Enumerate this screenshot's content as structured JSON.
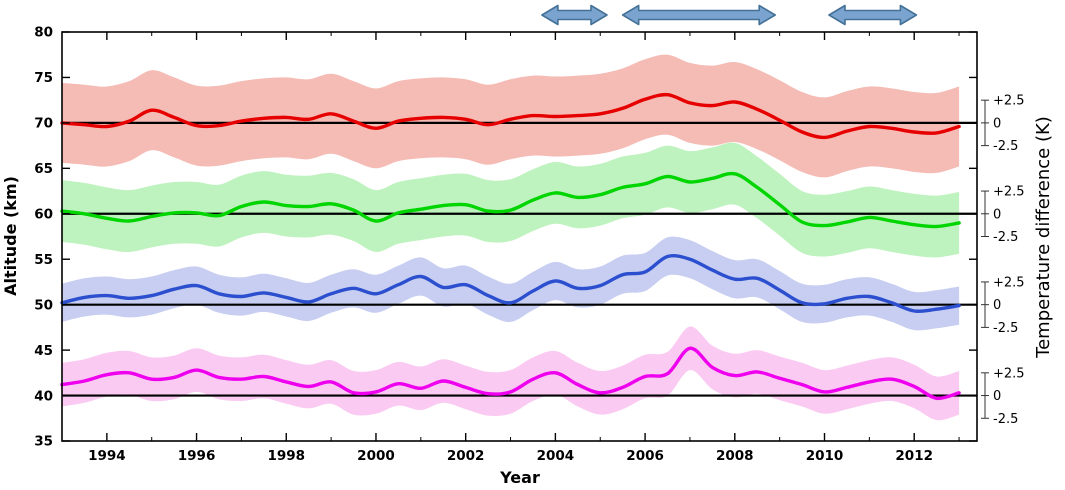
{
  "axes": {
    "x": {
      "label": "Year",
      "ticks": [
        1994,
        1996,
        1998,
        2000,
        2002,
        2004,
        2006,
        2008,
        2010,
        2012
      ],
      "minor_ticks": [
        1993,
        1995,
        1997,
        1999,
        2001,
        2003,
        2005,
        2007,
        2009,
        2011,
        2013
      ],
      "range": [
        1993,
        2013.4
      ]
    },
    "y_left": {
      "label": "Altitude (km)",
      "ticks": [
        35,
        40,
        45,
        50,
        55,
        60,
        65,
        70,
        75,
        80
      ],
      "range": [
        35,
        80
      ]
    },
    "y_right": {
      "label": "Temperature difference (K)",
      "tick_labels": [
        "+2.5",
        "0",
        "-2.5"
      ],
      "tick_offsets_K": [
        2.5,
        0,
        -2.5
      ],
      "baselines_km": [
        70,
        60,
        50,
        40
      ]
    }
  },
  "arrows": [
    {
      "name": "period-arrow-1",
      "year_start": 2003.7,
      "year_end": 2005.15
    },
    {
      "name": "period-arrow-2",
      "year_start": 2005.5,
      "year_end": 2008.9
    },
    {
      "name": "period-arrow-3",
      "year_start": 2010.1,
      "year_end": 2012.05
    }
  ],
  "arrow_style": {
    "fill": "#7ba3cf",
    "stroke": "#447197"
  },
  "chart_data": {
    "type": "line",
    "title": "",
    "xlabel": "Year",
    "ylabel_left": "Altitude (km)",
    "ylabel_right": "Temperature difference (K)",
    "x_range": [
      1993,
      2013.4
    ],
    "y_range_km": [
      35,
      80
    ],
    "note": "Four temperature-difference (K) time series plotted around altitude baselines; 1 K = 1 km on the altitude axis; shaded envelopes show uncertainty.",
    "x": [
      1993,
      1993.5,
      1994,
      1994.5,
      1995,
      1995.5,
      1996,
      1996.5,
      1997,
      1997.5,
      1998,
      1998.5,
      1999,
      1999.5,
      2000,
      2000.5,
      2001,
      2001.5,
      2002,
      2002.5,
      2003,
      2003.5,
      2004,
      2004.5,
      2005,
      2005.5,
      2006,
      2006.5,
      2007,
      2007.5,
      2008,
      2008.5,
      2009,
      2009.5,
      2010,
      2010.5,
      2011,
      2011.5,
      2012,
      2012.5,
      2013
    ],
    "series": [
      {
        "name": "70 km",
        "baseline_km": 70,
        "color": "#e60000",
        "band_color": "rgba(233,105,90,0.45)",
        "band_halfwidth_K": 4.4,
        "values": [
          0.0,
          -0.2,
          -0.4,
          0.2,
          1.4,
          0.6,
          -0.3,
          -0.3,
          0.2,
          0.5,
          0.6,
          0.4,
          1.0,
          0.2,
          -0.6,
          0.2,
          0.5,
          0.6,
          0.4,
          -0.2,
          0.4,
          0.8,
          0.7,
          0.8,
          1.0,
          1.6,
          2.6,
          3.1,
          2.2,
          1.9,
          2.3,
          1.5,
          0.3,
          -1.0,
          -1.6,
          -0.9,
          -0.4,
          -0.6,
          -1.0,
          -1.1,
          -0.4
        ]
      },
      {
        "name": "60 km",
        "baseline_km": 60,
        "color": "#00d500",
        "band_color": "rgba(85,220,85,0.38)",
        "band_halfwidth_K": 3.4,
        "values": [
          0.3,
          0.0,
          -0.5,
          -0.8,
          -0.3,
          0.1,
          0.1,
          -0.2,
          0.8,
          1.3,
          0.9,
          0.8,
          1.1,
          0.4,
          -0.8,
          0.1,
          0.5,
          0.9,
          1.0,
          0.3,
          0.4,
          1.5,
          2.3,
          1.8,
          2.1,
          2.9,
          3.3,
          4.1,
          3.5,
          3.9,
          4.4,
          2.9,
          1.0,
          -0.9,
          -1.3,
          -0.9,
          -0.4,
          -0.8,
          -1.2,
          -1.4,
          -1.0
        ]
      },
      {
        "name": "50 km",
        "baseline_km": 50,
        "color": "#2b4fce",
        "band_color": "rgba(95,115,215,0.35)",
        "band_halfwidth_K": 2.1,
        "values": [
          0.2,
          0.8,
          1.0,
          0.7,
          1.0,
          1.7,
          2.1,
          1.2,
          0.9,
          1.3,
          0.8,
          0.3,
          1.2,
          1.8,
          1.2,
          2.2,
          3.1,
          1.9,
          2.2,
          1.0,
          0.2,
          1.5,
          2.6,
          1.8,
          2.1,
          3.3,
          3.6,
          5.3,
          5.0,
          3.8,
          2.8,
          2.9,
          1.6,
          0.2,
          0.1,
          0.7,
          0.9,
          0.2,
          -0.7,
          -0.5,
          -0.1
        ]
      },
      {
        "name": "40 km",
        "baseline_km": 40,
        "color": "#ee00ee",
        "band_color": "rgba(240,95,215,0.33)",
        "band_halfwidth_K": 2.4,
        "values": [
          1.2,
          1.6,
          2.3,
          2.5,
          1.8,
          2.0,
          2.8,
          2.0,
          1.8,
          2.1,
          1.5,
          1.0,
          1.5,
          0.3,
          0.4,
          1.3,
          0.8,
          1.6,
          0.9,
          0.2,
          0.4,
          1.8,
          2.5,
          1.2,
          0.3,
          0.9,
          2.1,
          2.4,
          5.2,
          3.1,
          2.2,
          2.6,
          1.9,
          1.2,
          0.4,
          0.9,
          1.5,
          1.8,
          1.0,
          -0.3,
          0.3
        ]
      }
    ]
  }
}
